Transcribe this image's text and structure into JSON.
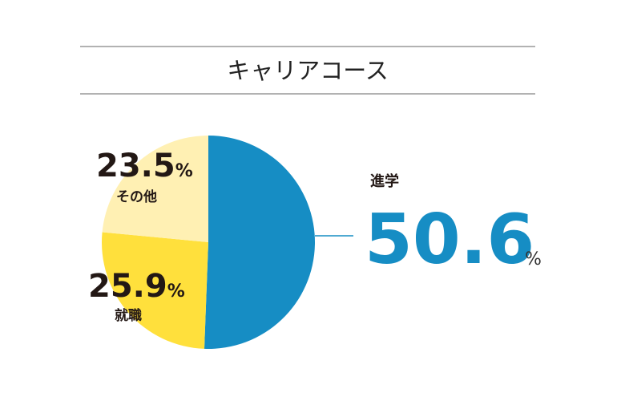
{
  "chart_data": {
    "type": "pie",
    "title": "キャリアコース",
    "categories": [
      "進学",
      "就職",
      "その他"
    ],
    "values": [
      50.6,
      25.9,
      23.5
    ],
    "colors": [
      "#168dc4",
      "#ffe03c",
      "#fff0b3"
    ],
    "unit": "%"
  }
}
